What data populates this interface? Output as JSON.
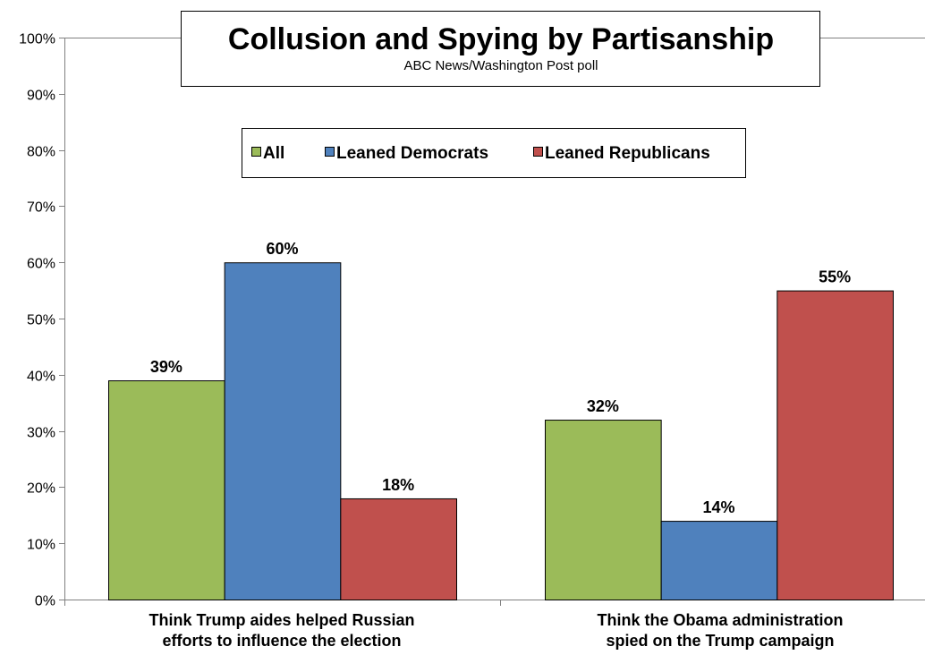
{
  "chart_data": {
    "type": "bar",
    "title": "Collusion and Spying by Partisanship",
    "subtitle": "ABC News/Washington  Post poll",
    "xlabel": "",
    "ylabel": "",
    "ylim": [
      0,
      100
    ],
    "y_ticks": [
      "0%",
      "10%",
      "20%",
      "30%",
      "40%",
      "50%",
      "60%",
      "70%",
      "80%",
      "90%",
      "100%"
    ],
    "categories": [
      [
        "Think Trump aides helped Russian",
        "efforts to influence the election"
      ],
      [
        "Think the Obama administration",
        "spied on the Trump campaign"
      ]
    ],
    "series": [
      {
        "name": "All",
        "color": "#9BBB59",
        "values": [
          39,
          32
        ],
        "labels": [
          "39%",
          "32%"
        ]
      },
      {
        "name": "Leaned Democrats",
        "color": "#4F81BD",
        "values": [
          60,
          14
        ],
        "labels": [
          "60%",
          "14%"
        ]
      },
      {
        "name": "Leaned Republicans",
        "color": "#C0504D",
        "values": [
          18,
          55
        ],
        "labels": [
          "18%",
          "55%"
        ]
      }
    ],
    "grid": false,
    "legend_position": "top-center",
    "bar_outline_color": "#000000"
  }
}
